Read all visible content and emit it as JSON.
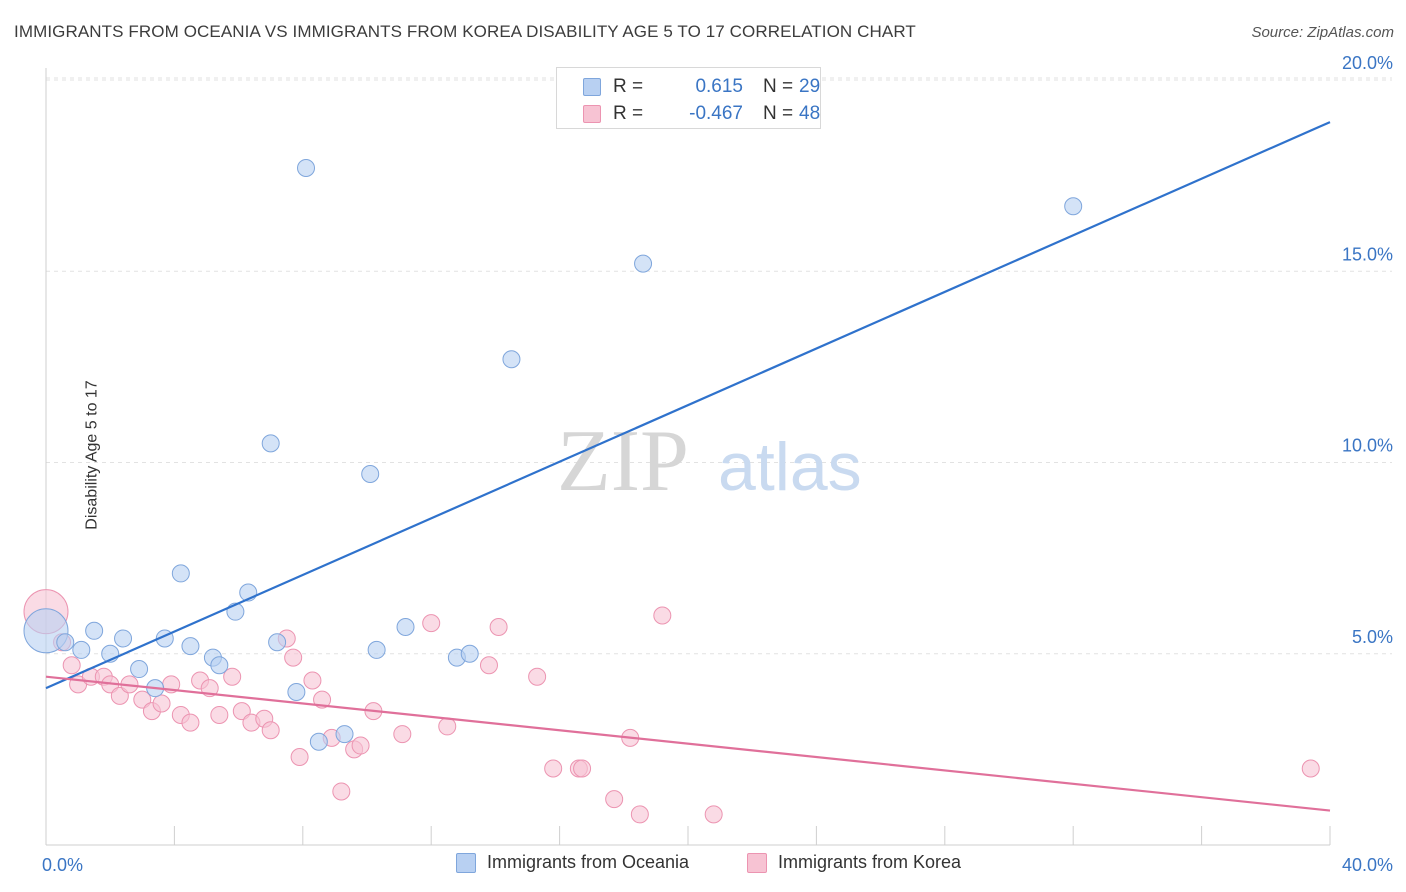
{
  "header": {
    "title": "IMMIGRANTS FROM OCEANIA VS IMMIGRANTS FROM KOREA DISABILITY AGE 5 TO 17 CORRELATION CHART",
    "source": "Source: ZipAtlas.com"
  },
  "watermark": {
    "zip": "ZIP",
    "atlas": "atlas"
  },
  "legend_top": {
    "rows": [
      {
        "r_label": "R =",
        "r_value": "0.615",
        "n_label": "N =",
        "n_value": "29"
      },
      {
        "r_label": "R =",
        "r_value": "-0.467",
        "n_label": "N =",
        "n_value": "48"
      }
    ]
  },
  "chart_data": {
    "type": "scatter",
    "title": "IMMIGRANTS FROM OCEANIA VS IMMIGRANTS FROM KOREA DISABILITY AGE 5 TO 17 CORRELATION CHART",
    "xlabel": "",
    "ylabel": "Disability Age 5 to 17",
    "xlim": [
      0,
      40
    ],
    "ylim": [
      0,
      20.5
    ],
    "x_tick_labels": [
      "0.0%",
      "40.0%"
    ],
    "y_ticks": [
      5,
      10,
      15,
      20
    ],
    "y_tick_labels": [
      "5.0%",
      "10.0%",
      "15.0%",
      "20.0%"
    ],
    "grid": true,
    "legend_position": "bottom",
    "colors": {
      "oceania_fill": "#b8d0f2",
      "oceania_stroke": "#7fa6dc",
      "oceania_line": "#2f72cc",
      "korea_fill": "#f7c3d3",
      "korea_stroke": "#ec94b1",
      "korea_line": "#e0709a",
      "tick_label": "#3a75c4"
    },
    "series": [
      {
        "name": "Immigrants from Oceania",
        "r": 0.615,
        "n": 29,
        "trend": {
          "x": [
            0,
            40
          ],
          "y": [
            4.1,
            18.9
          ]
        },
        "points": [
          {
            "x": 0.0,
            "y": 5.6,
            "big": true
          },
          {
            "x": 0.6,
            "y": 5.3
          },
          {
            "x": 1.1,
            "y": 5.1
          },
          {
            "x": 1.5,
            "y": 5.6
          },
          {
            "x": 2.0,
            "y": 5.0
          },
          {
            "x": 2.4,
            "y": 5.4
          },
          {
            "x": 2.9,
            "y": 4.6
          },
          {
            "x": 3.4,
            "y": 4.1
          },
          {
            "x": 3.7,
            "y": 5.4
          },
          {
            "x": 4.2,
            "y": 7.1
          },
          {
            "x": 4.5,
            "y": 5.2
          },
          {
            "x": 5.2,
            "y": 4.9
          },
          {
            "x": 5.4,
            "y": 4.7
          },
          {
            "x": 5.9,
            "y": 6.1
          },
          {
            "x": 6.3,
            "y": 6.6
          },
          {
            "x": 7.0,
            "y": 10.5
          },
          {
            "x": 7.2,
            "y": 5.3
          },
          {
            "x": 7.8,
            "y": 4.0
          },
          {
            "x": 8.1,
            "y": 17.7
          },
          {
            "x": 8.5,
            "y": 2.7
          },
          {
            "x": 9.3,
            "y": 2.9
          },
          {
            "x": 10.1,
            "y": 9.7
          },
          {
            "x": 10.3,
            "y": 5.1
          },
          {
            "x": 11.2,
            "y": 5.7
          },
          {
            "x": 12.8,
            "y": 4.9
          },
          {
            "x": 13.2,
            "y": 5.0
          },
          {
            "x": 14.5,
            "y": 12.7
          },
          {
            "x": 18.6,
            "y": 15.2
          },
          {
            "x": 32.0,
            "y": 16.7
          }
        ]
      },
      {
        "name": "Immigrants from Korea",
        "r": -0.467,
        "n": 48,
        "trend": {
          "x": [
            0,
            40
          ],
          "y": [
            4.4,
            0.9
          ]
        },
        "points": [
          {
            "x": 0.0,
            "y": 6.1,
            "big": true
          },
          {
            "x": 0.5,
            "y": 5.3
          },
          {
            "x": 0.8,
            "y": 4.7
          },
          {
            "x": 1.0,
            "y": 4.2
          },
          {
            "x": 1.4,
            "y": 4.4
          },
          {
            "x": 1.8,
            "y": 4.4
          },
          {
            "x": 2.0,
            "y": 4.2
          },
          {
            "x": 2.3,
            "y": 3.9
          },
          {
            "x": 2.6,
            "y": 4.2
          },
          {
            "x": 3.0,
            "y": 3.8
          },
          {
            "x": 3.3,
            "y": 3.5
          },
          {
            "x": 3.6,
            "y": 3.7
          },
          {
            "x": 3.9,
            "y": 4.2
          },
          {
            "x": 4.2,
            "y": 3.4
          },
          {
            "x": 4.5,
            "y": 3.2
          },
          {
            "x": 4.8,
            "y": 4.3
          },
          {
            "x": 5.1,
            "y": 4.1
          },
          {
            "x": 5.4,
            "y": 3.4
          },
          {
            "x": 5.8,
            "y": 4.4
          },
          {
            "x": 6.1,
            "y": 3.5
          },
          {
            "x": 6.4,
            "y": 3.2
          },
          {
            "x": 6.8,
            "y": 3.3
          },
          {
            "x": 7.0,
            "y": 3.0
          },
          {
            "x": 7.5,
            "y": 5.4
          },
          {
            "x": 7.7,
            "y": 4.9
          },
          {
            "x": 7.9,
            "y": 2.3
          },
          {
            "x": 8.3,
            "y": 4.3
          },
          {
            "x": 8.6,
            "y": 3.8
          },
          {
            "x": 8.9,
            "y": 2.8
          },
          {
            "x": 9.2,
            "y": 1.4
          },
          {
            "x": 9.6,
            "y": 2.5
          },
          {
            "x": 9.8,
            "y": 2.6
          },
          {
            "x": 10.2,
            "y": 3.5
          },
          {
            "x": 11.1,
            "y": 2.9
          },
          {
            "x": 12.0,
            "y": 5.8
          },
          {
            "x": 12.5,
            "y": 3.1
          },
          {
            "x": 13.8,
            "y": 4.7
          },
          {
            "x": 14.1,
            "y": 5.7
          },
          {
            "x": 15.3,
            "y": 4.4
          },
          {
            "x": 15.8,
            "y": 2.0
          },
          {
            "x": 16.6,
            "y": 2.0
          },
          {
            "x": 16.7,
            "y": 2.0
          },
          {
            "x": 17.7,
            "y": 1.2
          },
          {
            "x": 18.2,
            "y": 2.8
          },
          {
            "x": 18.5,
            "y": 0.8
          },
          {
            "x": 19.2,
            "y": 6.0
          },
          {
            "x": 20.8,
            "y": 0.8
          },
          {
            "x": 39.4,
            "y": 2.0
          }
        ]
      }
    ]
  }
}
